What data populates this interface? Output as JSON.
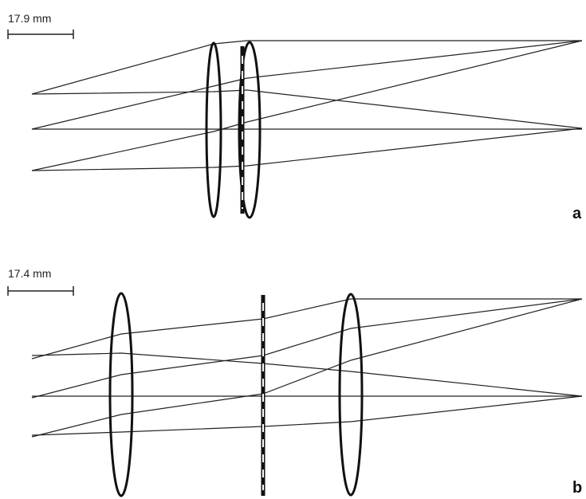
{
  "panels": [
    {
      "id": "a",
      "letter": "a",
      "scale_label": "17.9 mm"
    },
    {
      "id": "b",
      "letter": "b",
      "scale_label": "17.4 mm"
    }
  ],
  "colors": {
    "ink": "#222222",
    "background": "#ffffff"
  }
}
